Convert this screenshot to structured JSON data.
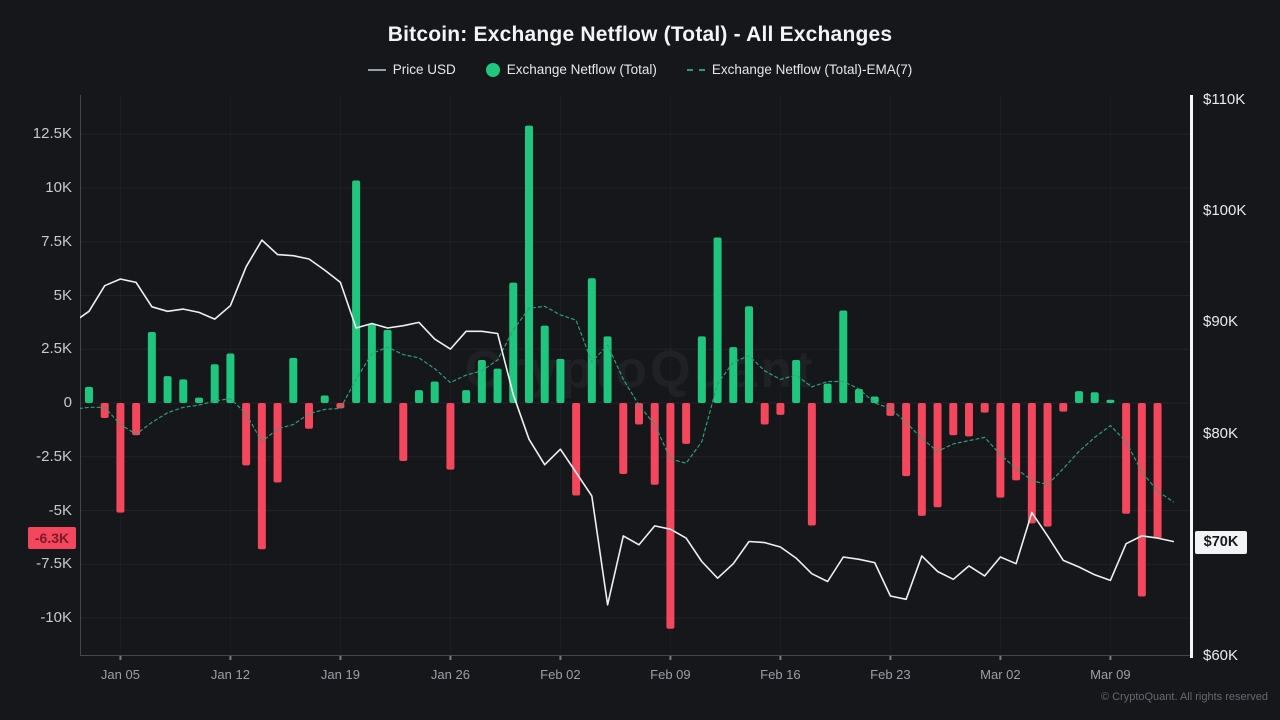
{
  "title": "Bitcoin: Exchange Netflow (Total) - All Exchanges",
  "legend": [
    {
      "label": "Price USD",
      "marker": "line-icon",
      "color": "#9a9ea6"
    },
    {
      "label": "Exchange Netflow (Total)",
      "marker": "dot-icon",
      "color": "#1fc77e"
    },
    {
      "label": "Exchange Netflow (Total)-EMA(7)",
      "marker": "dashed-line-icon",
      "color": "#2e9e78"
    }
  ],
  "watermark": "CryptoQuant",
  "copyright": "© CryptoQuant. All rights reserved",
  "colors": {
    "background": "#15171a",
    "netflow_positive": "#1fc77e",
    "netflow_negative": "#f4465c",
    "price_line": "#edeff1",
    "ema_line": "#2e9e78",
    "grid": "rgba(255,255,255,0.055)",
    "grid_vertical": "rgba(255,255,255,0.03)",
    "axis_line": "#43464c",
    "right_axis_line": "#f5f6f7",
    "flow_badge_bg": "#f4465c",
    "price_badge_bg": "#f2f3f5"
  },
  "axes": {
    "left": {
      "ticks": [
        {
          "label": "12.5K",
          "value": 12.5
        },
        {
          "label": "10K",
          "value": 10
        },
        {
          "label": "7.5K",
          "value": 7.5
        },
        {
          "label": "5K",
          "value": 5
        },
        {
          "label": "2.5K",
          "value": 2.5
        },
        {
          "label": "0",
          "value": 0
        },
        {
          "label": "-2.5K",
          "value": -2.5
        },
        {
          "label": "-5K",
          "value": -5
        },
        {
          "label": "-7.5K",
          "value": -7.5
        },
        {
          "label": "-10K",
          "value": -10
        }
      ],
      "badge": {
        "label": "-6.3K",
        "value": -6.3
      }
    },
    "right": {
      "ticks": [
        {
          "label": "$110K",
          "value": 110
        },
        {
          "label": "$100K",
          "value": 100
        },
        {
          "label": "$90K",
          "value": 90
        },
        {
          "label": "$80K",
          "value": 80
        },
        {
          "label": "$70K",
          "value": 70
        },
        {
          "label": "$60K",
          "value": 60
        }
      ],
      "badge": {
        "label": "$70K",
        "value": 70.3
      }
    },
    "x": {
      "ticks": [
        {
          "label": "Jan 05",
          "index": 3
        },
        {
          "label": "Jan 12",
          "index": 10
        },
        {
          "label": "Jan 19",
          "index": 17
        },
        {
          "label": "Jan 26",
          "index": 24
        },
        {
          "label": "Feb 02",
          "index": 31
        },
        {
          "label": "Feb 09",
          "index": 38
        },
        {
          "label": "Feb 16",
          "index": 45
        },
        {
          "label": "Feb 23",
          "index": 52
        },
        {
          "label": "Mar 02",
          "index": 59
        },
        {
          "label": "Mar 09",
          "index": 66
        }
      ]
    }
  },
  "chart_data": {
    "type": "combo",
    "x_dates": [
      "Jan 02",
      "Jan 03",
      "Jan 04",
      "Jan 05",
      "Jan 06",
      "Jan 07",
      "Jan 08",
      "Jan 09",
      "Jan 10",
      "Jan 11",
      "Jan 12",
      "Jan 13",
      "Jan 14",
      "Jan 15",
      "Jan 16",
      "Jan 17",
      "Jan 18",
      "Jan 19",
      "Jan 20",
      "Jan 21",
      "Jan 22",
      "Jan 23",
      "Jan 24",
      "Jan 25",
      "Jan 26",
      "Jan 27",
      "Jan 28",
      "Jan 29",
      "Jan 30",
      "Jan 31",
      "Feb 01",
      "Feb 02",
      "Feb 03",
      "Feb 04",
      "Feb 05",
      "Feb 06",
      "Feb 07",
      "Feb 08",
      "Feb 09",
      "Feb 10",
      "Feb 11",
      "Feb 12",
      "Feb 13",
      "Feb 14",
      "Feb 15",
      "Feb 16",
      "Feb 17",
      "Feb 18",
      "Feb 19",
      "Feb 20",
      "Feb 21",
      "Feb 22",
      "Feb 23",
      "Feb 24",
      "Feb 25",
      "Feb 26",
      "Feb 27",
      "Feb 28",
      "Mar 01",
      "Mar 02",
      "Mar 03",
      "Mar 04",
      "Mar 05",
      "Mar 06",
      "Mar 07",
      "Mar 08",
      "Mar 09",
      "Mar 10",
      "Mar 11",
      "Mar 12",
      "Mar 13"
    ],
    "series": [
      {
        "name": "Exchange Netflow (Total)",
        "type": "bar",
        "axis": "left",
        "unit": "K",
        "values": [
          null,
          0.75,
          -0.7,
          -5.1,
          -1.5,
          3.3,
          1.25,
          1.1,
          0.25,
          1.8,
          2.3,
          -2.9,
          -6.8,
          -3.7,
          2.1,
          -1.2,
          0.35,
          -0.25,
          10.35,
          3.7,
          3.4,
          -2.7,
          0.6,
          1.0,
          -3.1,
          0.6,
          2.0,
          1.6,
          5.6,
          12.9,
          3.6,
          2.05,
          -4.3,
          5.8,
          3.1,
          -3.3,
          -1.0,
          -3.8,
          -10.5,
          -1.9,
          3.1,
          7.7,
          2.6,
          4.5,
          -1.0,
          -0.55,
          2.0,
          -5.7,
          0.9,
          4.3,
          0.65,
          0.3,
          -0.6,
          -3.4,
          -5.25,
          -4.85,
          -1.5,
          -1.55,
          -0.45,
          -4.4,
          -3.6,
          -5.6,
          -5.75,
          -0.4,
          0.55,
          0.5,
          0.15,
          -5.15,
          -9.0,
          -6.3,
          null
        ]
      },
      {
        "name": "Price USD",
        "type": "line",
        "axis": "right",
        "unit": "K USD",
        "values": [
          90.0,
          91.0,
          93.3,
          93.9,
          93.6,
          91.4,
          91.0,
          91.2,
          90.9,
          90.3,
          91.5,
          95.0,
          97.4,
          96.1,
          96.0,
          95.7,
          94.7,
          93.6,
          89.5,
          89.9,
          89.5,
          89.7,
          90.0,
          88.5,
          87.6,
          89.2,
          89.2,
          89.0,
          83.5,
          79.5,
          77.2,
          78.6,
          76.5,
          74.4,
          64.6,
          70.8,
          70.0,
          71.7,
          71.4,
          70.6,
          68.5,
          67.0,
          68.3,
          70.3,
          70.2,
          69.8,
          68.8,
          67.4,
          66.7,
          68.9,
          68.7,
          68.4,
          65.4,
          65.1,
          69.0,
          67.6,
          66.9,
          68.1,
          67.2,
          68.9,
          68.3,
          72.9,
          70.8,
          68.6,
          68.0,
          67.3,
          66.8,
          70.1,
          70.8,
          70.6,
          70.3
        ]
      },
      {
        "name": "Exchange Netflow (Total)-EMA(7)",
        "type": "line",
        "dashed": true,
        "axis": "left",
        "unit": "K",
        "values": [
          -0.3,
          -0.2,
          -0.2,
          -1.0,
          -1.45,
          -0.9,
          -0.45,
          -0.2,
          -0.1,
          0.1,
          0.2,
          -0.5,
          -1.8,
          -1.2,
          -1.0,
          -0.5,
          -0.3,
          -0.25,
          1.1,
          2.3,
          2.6,
          2.25,
          2.1,
          1.6,
          0.95,
          1.3,
          1.5,
          2.0,
          3.4,
          4.4,
          4.5,
          4.1,
          3.85,
          1.9,
          2.7,
          1.1,
          -0.1,
          -1.0,
          -2.6,
          -2.8,
          -1.8,
          0.9,
          1.9,
          2.2,
          1.5,
          1.1,
          1.3,
          0.75,
          1.0,
          1.0,
          0.65,
          0.0,
          -0.25,
          -0.9,
          -1.65,
          -2.25,
          -1.9,
          -1.75,
          -1.6,
          -2.4,
          -3.05,
          -3.6,
          -3.8,
          -3.05,
          -2.25,
          -1.6,
          -1.05,
          -1.8,
          -3.2,
          -4.1,
          -4.6
        ]
      }
    ],
    "left_axis_range": [
      -11.6,
      14.3
    ],
    "right_axis_range": [
      59.8,
      110.4
    ],
    "grid": true,
    "legend_position": "top"
  }
}
